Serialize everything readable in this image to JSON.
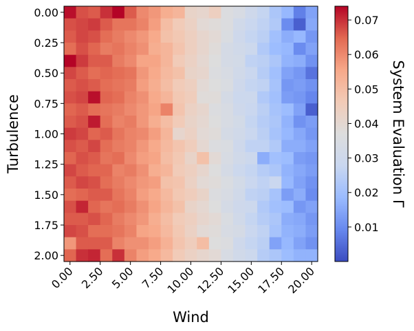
{
  "chart_data": {
    "type": "heatmap",
    "title": "",
    "xlabel": "Wind",
    "ylabel": "Turbulence",
    "colorbar_label": "System Evaluation Γ",
    "colormap": "coolwarm",
    "colormap_stops": [
      "#3b4cc0",
      "#6788ee",
      "#9abbff",
      "#c9d7f0",
      "#dddddd",
      "#f2cbb7",
      "#f7a889",
      "#e26952",
      "#b40426"
    ],
    "vmin": 0.0,
    "vmax": 0.074,
    "x_range": [
      0,
      20
    ],
    "y_range": [
      0,
      2
    ],
    "x_cells": 21,
    "y_cells": 21,
    "x_ticks": [
      0,
      2.5,
      5,
      7.5,
      10,
      12.5,
      15,
      17.5,
      20
    ],
    "x_tick_labels": [
      "0.00",
      "2.50",
      "5.00",
      "7.50",
      "10.00",
      "12.50",
      "15.00",
      "17.50",
      "20.00"
    ],
    "y_ticks": [
      0,
      0.25,
      0.5,
      0.75,
      1.0,
      1.25,
      1.5,
      1.75,
      2.0
    ],
    "y_tick_labels": [
      "0.00",
      "0.25",
      "0.50",
      "0.75",
      "1.00",
      "1.25",
      "1.50",
      "1.75",
      "2.00"
    ],
    "colorbar_ticks": [
      0.01,
      0.02,
      0.03,
      0.04,
      0.05,
      0.06,
      0.07
    ],
    "colorbar_tick_labels": [
      "0.01",
      "0.02",
      "0.03",
      "0.04",
      "0.05",
      "0.06",
      "0.07"
    ],
    "row_profile": [
      0.067,
      0.066,
      0.065,
      0.064,
      0.063,
      0.061,
      0.058,
      0.055,
      0.051,
      0.047,
      0.043,
      0.04,
      0.037,
      0.034,
      0.031,
      0.028,
      0.025,
      0.022,
      0.019,
      0.015,
      0.012
    ],
    "values": [
      [
        0.073,
        0.067,
        0.066,
        0.07,
        0.074,
        0.066,
        0.06,
        0.058,
        0.054,
        0.052,
        0.042,
        0.041,
        0.044,
        0.036,
        0.034,
        0.03,
        0.027,
        0.022,
        0.018,
        0.008,
        0.014
      ],
      [
        0.067,
        0.068,
        0.069,
        0.066,
        0.063,
        0.063,
        0.061,
        0.057,
        0.05,
        0.046,
        0.043,
        0.039,
        0.038,
        0.036,
        0.031,
        0.028,
        0.026,
        0.023,
        0.01,
        0.003,
        0.015
      ],
      [
        0.066,
        0.068,
        0.067,
        0.064,
        0.062,
        0.06,
        0.058,
        0.055,
        0.049,
        0.047,
        0.044,
        0.041,
        0.039,
        0.035,
        0.03,
        0.027,
        0.025,
        0.02,
        0.016,
        0.018,
        0.012
      ],
      [
        0.064,
        0.067,
        0.065,
        0.062,
        0.063,
        0.061,
        0.059,
        0.054,
        0.052,
        0.048,
        0.044,
        0.041,
        0.038,
        0.033,
        0.031,
        0.029,
        0.023,
        0.019,
        0.018,
        0.01,
        0.014
      ],
      [
        0.074,
        0.069,
        0.066,
        0.066,
        0.062,
        0.06,
        0.056,
        0.056,
        0.052,
        0.046,
        0.043,
        0.04,
        0.037,
        0.033,
        0.032,
        0.026,
        0.025,
        0.022,
        0.017,
        0.016,
        0.011
      ],
      [
        0.068,
        0.066,
        0.064,
        0.065,
        0.064,
        0.063,
        0.058,
        0.055,
        0.051,
        0.049,
        0.042,
        0.041,
        0.036,
        0.034,
        0.031,
        0.028,
        0.024,
        0.02,
        0.014,
        0.012,
        0.006
      ],
      [
        0.066,
        0.067,
        0.066,
        0.064,
        0.063,
        0.062,
        0.057,
        0.054,
        0.05,
        0.046,
        0.044,
        0.039,
        0.037,
        0.035,
        0.03,
        0.027,
        0.026,
        0.021,
        0.012,
        0.013,
        0.011
      ],
      [
        0.067,
        0.068,
        0.073,
        0.065,
        0.064,
        0.061,
        0.059,
        0.055,
        0.052,
        0.047,
        0.045,
        0.038,
        0.038,
        0.033,
        0.029,
        0.029,
        0.023,
        0.02,
        0.013,
        0.012,
        0.009
      ],
      [
        0.065,
        0.066,
        0.064,
        0.063,
        0.062,
        0.06,
        0.058,
        0.056,
        0.061,
        0.048,
        0.043,
        0.041,
        0.036,
        0.034,
        0.03,
        0.028,
        0.025,
        0.021,
        0.019,
        0.014,
        0.003
      ],
      [
        0.066,
        0.067,
        0.072,
        0.064,
        0.061,
        0.062,
        0.058,
        0.054,
        0.05,
        0.046,
        0.042,
        0.04,
        0.037,
        0.034,
        0.032,
        0.027,
        0.024,
        0.022,
        0.017,
        0.011,
        0.013
      ],
      [
        0.069,
        0.068,
        0.065,
        0.066,
        0.063,
        0.061,
        0.06,
        0.057,
        0.052,
        0.041,
        0.043,
        0.039,
        0.038,
        0.033,
        0.031,
        0.028,
        0.025,
        0.021,
        0.018,
        0.015,
        0.012
      ],
      [
        0.067,
        0.066,
        0.068,
        0.064,
        0.062,
        0.061,
        0.058,
        0.055,
        0.051,
        0.048,
        0.045,
        0.04,
        0.036,
        0.035,
        0.03,
        0.026,
        0.026,
        0.023,
        0.016,
        0.016,
        0.014
      ],
      [
        0.065,
        0.067,
        0.066,
        0.063,
        0.064,
        0.06,
        0.057,
        0.056,
        0.05,
        0.047,
        0.042,
        0.049,
        0.039,
        0.034,
        0.031,
        0.029,
        0.016,
        0.02,
        0.019,
        0.013,
        0.012
      ],
      [
        0.068,
        0.066,
        0.065,
        0.065,
        0.061,
        0.062,
        0.059,
        0.054,
        0.052,
        0.046,
        0.044,
        0.041,
        0.037,
        0.033,
        0.029,
        0.027,
        0.024,
        0.022,
        0.017,
        0.015,
        0.013
      ],
      [
        0.066,
        0.068,
        0.067,
        0.064,
        0.062,
        0.06,
        0.058,
        0.057,
        0.049,
        0.048,
        0.043,
        0.039,
        0.038,
        0.035,
        0.032,
        0.028,
        0.026,
        0.028,
        0.018,
        0.014,
        0.011
      ],
      [
        0.064,
        0.065,
        0.066,
        0.066,
        0.063,
        0.061,
        0.057,
        0.055,
        0.051,
        0.047,
        0.045,
        0.042,
        0.036,
        0.034,
        0.031,
        0.026,
        0.025,
        0.021,
        0.013,
        0.016,
        0.01
      ],
      [
        0.067,
        0.071,
        0.065,
        0.063,
        0.064,
        0.062,
        0.059,
        0.056,
        0.052,
        0.049,
        0.042,
        0.04,
        0.037,
        0.033,
        0.03,
        0.029,
        0.023,
        0.02,
        0.019,
        0.012,
        0.014
      ],
      [
        0.066,
        0.066,
        0.067,
        0.065,
        0.062,
        0.06,
        0.058,
        0.054,
        0.05,
        0.046,
        0.044,
        0.041,
        0.039,
        0.035,
        0.031,
        0.027,
        0.024,
        0.022,
        0.016,
        0.015,
        0.012
      ],
      [
        0.068,
        0.067,
        0.064,
        0.064,
        0.063,
        0.061,
        0.056,
        0.055,
        0.051,
        0.047,
        0.043,
        0.039,
        0.038,
        0.034,
        0.033,
        0.028,
        0.026,
        0.021,
        0.017,
        0.016,
        0.013
      ],
      [
        0.058,
        0.066,
        0.066,
        0.066,
        0.061,
        0.059,
        0.059,
        0.057,
        0.053,
        0.048,
        0.045,
        0.05,
        0.037,
        0.036,
        0.03,
        0.027,
        0.025,
        0.014,
        0.018,
        0.014,
        0.011
      ],
      [
        0.065,
        0.07,
        0.071,
        0.064,
        0.07,
        0.061,
        0.057,
        0.055,
        0.051,
        0.046,
        0.043,
        0.041,
        0.039,
        0.034,
        0.031,
        0.029,
        0.024,
        0.022,
        0.019,
        0.017,
        0.017
      ]
    ]
  }
}
